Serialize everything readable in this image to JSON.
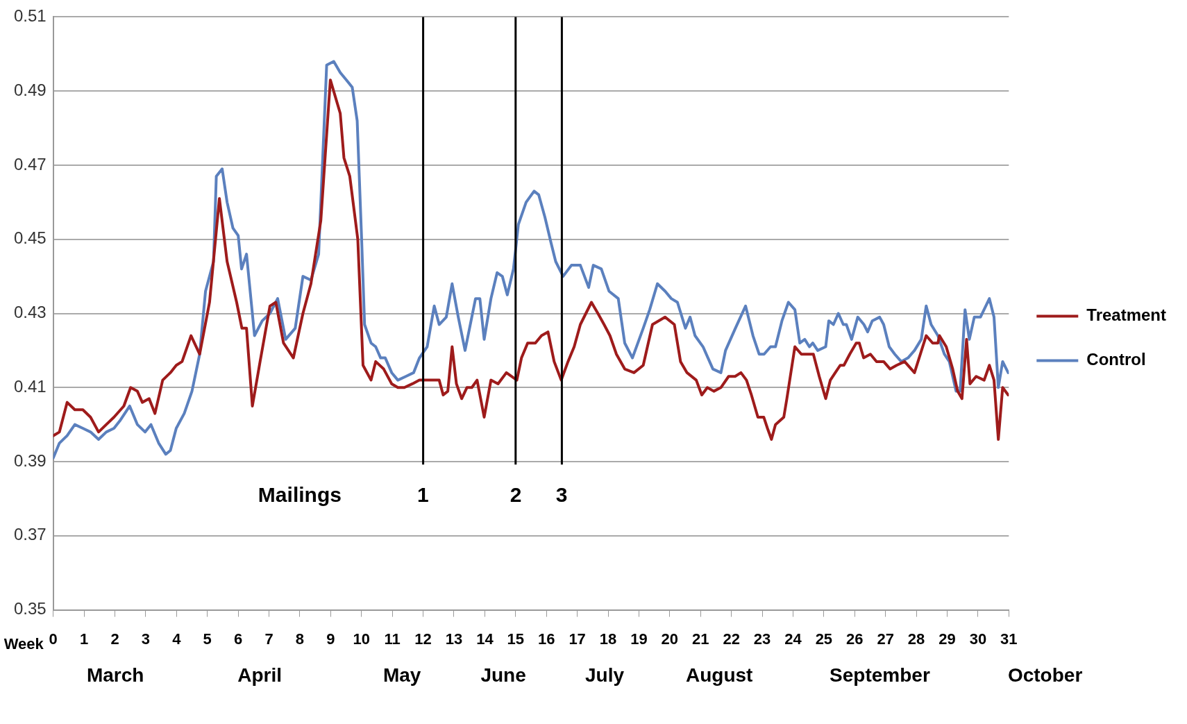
{
  "chart_data": {
    "type": "line",
    "xlabel": "Week",
    "xlim": [
      0,
      31
    ],
    "xticks": [
      0,
      1,
      2,
      3,
      4,
      5,
      6,
      7,
      8,
      9,
      10,
      11,
      12,
      13,
      14,
      15,
      16,
      17,
      18,
      19,
      20,
      21,
      22,
      23,
      24,
      25,
      26,
      27,
      28,
      29,
      30,
      31
    ],
    "ylim": [
      0.35,
      0.51
    ],
    "yticks": [
      0.35,
      0.37,
      0.39,
      0.41,
      0.43,
      0.45,
      0.47,
      0.49,
      0.51
    ],
    "grid": "y",
    "legend": "right",
    "marker": "none",
    "line_style": "solid",
    "series": [
      {
        "name": "Treatment",
        "color": "#9e1b1b",
        "x": [
          0,
          0.2,
          0.45,
          0.7,
          0.96,
          1.21,
          1.47,
          1.72,
          1.97,
          2.29,
          2.51,
          2.73,
          2.89,
          3.11,
          3.3,
          3.55,
          3.8,
          3.99,
          4.18,
          4.47,
          4.75,
          5.07,
          5.39,
          5.64,
          5.95,
          6.12,
          6.27,
          6.46,
          6.71,
          7.03,
          7.22,
          7.47,
          7.79,
          8.1,
          8.36,
          8.68,
          8.99,
          9.31,
          9.43,
          9.62,
          9.88,
          10.05,
          10.31,
          10.46,
          10.72,
          10.98,
          11.18,
          11.39,
          11.65,
          11.88,
          12.3,
          12.52,
          12.65,
          12.8,
          12.94,
          13.08,
          13.25,
          13.42,
          13.58,
          13.75,
          13.98,
          14.2,
          14.43,
          14.7,
          15.04,
          15.19,
          15.39,
          15.64,
          15.84,
          16.05,
          16.25,
          16.48,
          16.7,
          16.9,
          17.1,
          17.46,
          17.67,
          17.87,
          18.06,
          18.27,
          18.54,
          18.84,
          19.14,
          19.44,
          19.85,
          20.15,
          20.35,
          20.56,
          20.86,
          21.04,
          21.22,
          21.43,
          21.66,
          21.91,
          22.12,
          22.31,
          22.49,
          22.65,
          22.86,
          23.05,
          23.17,
          23.3,
          23.43,
          23.7,
          23.8,
          24.06,
          24.27,
          24.48,
          24.66,
          24.85,
          25.06,
          25.21,
          25.37,
          25.53,
          25.65,
          25.84,
          26.05,
          26.15,
          26.29,
          26.51,
          26.71,
          26.94,
          27.15,
          27.36,
          27.62,
          27.94,
          28.32,
          28.53,
          28.7,
          28.75,
          28.97,
          29.18,
          29.34,
          29.48,
          29.63,
          29.74,
          29.94,
          30.2,
          30.37,
          30.52,
          30.66,
          30.8,
          30.98
        ],
        "values": [
          0.397,
          0.398,
          0.406,
          0.404,
          0.404,
          0.402,
          0.398,
          0.4,
          0.402,
          0.405,
          0.41,
          0.409,
          0.406,
          0.407,
          0.403,
          0.412,
          0.414,
          0.416,
          0.417,
          0.424,
          0.419,
          0.433,
          0.461,
          0.444,
          0.433,
          0.426,
          0.426,
          0.405,
          0.417,
          0.432,
          0.433,
          0.422,
          0.418,
          0.43,
          0.438,
          0.455,
          0.493,
          0.484,
          0.472,
          0.467,
          0.45,
          0.416,
          0.412,
          0.417,
          0.415,
          0.411,
          0.41,
          0.41,
          0.411,
          0.412,
          0.412,
          0.412,
          0.408,
          0.409,
          0.421,
          0.411,
          0.407,
          0.41,
          0.41,
          0.412,
          0.402,
          0.412,
          0.411,
          0.414,
          0.412,
          0.418,
          0.422,
          0.422,
          0.424,
          0.425,
          0.417,
          0.412,
          0.417,
          0.421,
          0.427,
          0.433,
          0.43,
          0.427,
          0.424,
          0.419,
          0.415,
          0.414,
          0.416,
          0.427,
          0.429,
          0.427,
          0.417,
          0.414,
          0.412,
          0.408,
          0.41,
          0.409,
          0.41,
          0.413,
          0.413,
          0.414,
          0.412,
          0.408,
          0.402,
          0.402,
          0.399,
          0.396,
          0.4,
          0.402,
          0.407,
          0.421,
          0.419,
          0.419,
          0.419,
          0.413,
          0.407,
          0.412,
          0.414,
          0.416,
          0.416,
          0.419,
          0.422,
          0.422,
          0.418,
          0.419,
          0.417,
          0.417,
          0.415,
          0.416,
          0.417,
          0.414,
          0.424,
          0.422,
          0.422,
          0.424,
          0.421,
          0.415,
          0.409,
          0.407,
          0.423,
          0.411,
          0.413,
          0.412,
          0.416,
          0.412,
          0.396,
          0.41,
          0.408
        ]
      },
      {
        "name": "Control",
        "color": "#5b80be",
        "x": [
          0,
          0.2,
          0.45,
          0.7,
          0.96,
          1.21,
          1.47,
          1.72,
          1.97,
          2.16,
          2.48,
          2.73,
          2.98,
          3.17,
          3.42,
          3.65,
          3.8,
          3.99,
          4.25,
          4.5,
          4.75,
          4.94,
          5.2,
          5.29,
          5.48,
          5.64,
          5.83,
          6.0,
          6.11,
          6.27,
          6.53,
          6.78,
          7.03,
          7.28,
          7.54,
          7.85,
          8.1,
          8.36,
          8.61,
          8.87,
          9.1,
          9.31,
          9.51,
          9.7,
          9.86,
          10.0,
          10.1,
          10.31,
          10.46,
          10.62,
          10.77,
          10.98,
          11.18,
          11.44,
          11.69,
          11.88,
          12.13,
          12.36,
          12.52,
          12.75,
          12.94,
          13.14,
          13.36,
          13.7,
          13.84,
          13.98,
          14.2,
          14.4,
          14.57,
          14.73,
          14.93,
          15.09,
          15.34,
          15.6,
          15.75,
          15.95,
          16.15,
          16.3,
          16.54,
          16.81,
          17.1,
          17.37,
          17.52,
          17.78,
          18.03,
          18.33,
          18.54,
          18.79,
          19.14,
          19.35,
          19.6,
          19.85,
          20.05,
          20.25,
          20.51,
          20.66,
          20.82,
          21.08,
          21.4,
          21.66,
          21.81,
          22.13,
          22.46,
          22.7,
          22.9,
          23.06,
          23.27,
          23.43,
          23.64,
          23.85,
          24.06,
          24.22,
          24.38,
          24.53,
          24.64,
          24.8,
          25.06,
          25.16,
          25.31,
          25.47,
          25.63,
          25.73,
          25.9,
          26.1,
          26.3,
          26.42,
          26.57,
          26.81,
          26.94,
          27.12,
          27.3,
          27.51,
          27.73,
          27.94,
          28.16,
          28.32,
          28.48,
          28.7,
          28.91,
          29.07,
          29.29,
          29.42,
          29.58,
          29.72,
          29.88,
          30.08,
          30.37,
          30.52,
          30.66,
          30.8,
          30.98
        ],
        "values": [
          0.391,
          0.395,
          0.397,
          0.4,
          0.399,
          0.398,
          0.396,
          0.398,
          0.399,
          0.401,
          0.405,
          0.4,
          0.398,
          0.4,
          0.395,
          0.392,
          0.393,
          0.399,
          0.403,
          0.409,
          0.419,
          0.436,
          0.444,
          0.467,
          0.469,
          0.46,
          0.453,
          0.451,
          0.442,
          0.446,
          0.424,
          0.428,
          0.43,
          0.434,
          0.423,
          0.426,
          0.44,
          0.439,
          0.446,
          0.497,
          0.498,
          0.495,
          0.493,
          0.491,
          0.482,
          0.451,
          0.427,
          0.422,
          0.421,
          0.418,
          0.418,
          0.414,
          0.412,
          0.413,
          0.414,
          0.418,
          0.421,
          0.432,
          0.427,
          0.429,
          0.438,
          0.429,
          0.42,
          0.434,
          0.434,
          0.423,
          0.434,
          0.441,
          0.44,
          0.435,
          0.442,
          0.454,
          0.46,
          0.463,
          0.462,
          0.456,
          0.449,
          0.444,
          0.44,
          0.443,
          0.443,
          0.437,
          0.443,
          0.442,
          0.436,
          0.434,
          0.422,
          0.418,
          0.426,
          0.431,
          0.438,
          0.436,
          0.434,
          0.433,
          0.426,
          0.429,
          0.424,
          0.421,
          0.415,
          0.414,
          0.42,
          0.426,
          0.432,
          0.424,
          0.419,
          0.419,
          0.421,
          0.421,
          0.428,
          0.433,
          0.431,
          0.422,
          0.423,
          0.421,
          0.422,
          0.42,
          0.421,
          0.428,
          0.427,
          0.43,
          0.427,
          0.427,
          0.423,
          0.429,
          0.427,
          0.425,
          0.428,
          0.429,
          0.427,
          0.421,
          0.419,
          0.417,
          0.418,
          0.42,
          0.423,
          0.432,
          0.427,
          0.424,
          0.419,
          0.417,
          0.409,
          0.409,
          0.431,
          0.423,
          0.429,
          0.429,
          0.434,
          0.429,
          0.41,
          0.417,
          0.414
        ]
      }
    ],
    "ref_lines": [
      {
        "axis": "x",
        "value": 12,
        "color": "#000000"
      },
      {
        "axis": "x",
        "value": 15,
        "color": "#000000"
      },
      {
        "axis": "x",
        "value": 16.5,
        "color": "#000000"
      }
    ],
    "annotations": [
      "Mailings",
      "1",
      "2",
      "3",
      "March",
      "April",
      "May",
      "June",
      "July",
      "August",
      "September",
      "October"
    ]
  }
}
